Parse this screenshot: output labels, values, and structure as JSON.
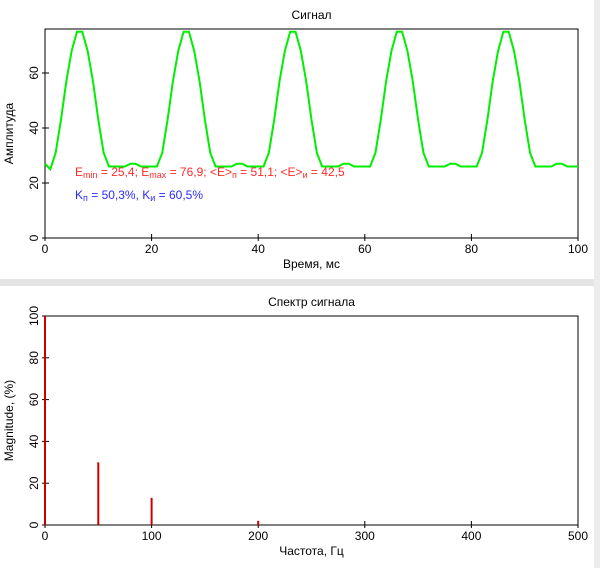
{
  "chart_data": [
    {
      "type": "line",
      "title": "Сигнал",
      "xlabel": "Время, мс",
      "ylabel": "Амплитуда",
      "x": [
        0,
        1,
        2,
        3,
        4,
        5,
        6,
        7,
        8,
        9,
        10,
        11,
        12,
        13,
        14,
        15,
        16,
        17,
        18,
        19,
        20,
        21,
        22,
        23,
        24,
        25,
        26,
        27,
        28,
        29,
        30,
        31,
        32,
        33,
        34,
        35,
        36,
        37,
        38,
        39,
        40,
        41,
        42,
        43,
        44,
        45,
        46,
        47,
        48,
        49,
        50,
        51,
        52,
        53,
        54,
        55,
        56,
        57,
        58,
        59,
        60,
        61,
        62,
        63,
        64,
        65,
        66,
        67,
        68,
        69,
        70,
        71,
        72,
        73,
        74,
        75,
        76,
        77,
        78,
        79,
        80,
        81,
        82,
        83,
        84,
        85,
        86,
        87,
        88,
        89,
        90,
        91,
        92,
        93,
        94,
        95,
        96,
        97,
        98,
        99,
        100
      ],
      "series": [
        {
          "name": "Сигнал",
          "color": "#00ee00",
          "values": [
            27,
            25,
            31,
            43,
            57,
            68,
            75,
            75,
            68,
            57,
            43,
            31,
            26,
            26,
            26,
            26,
            27,
            27,
            26,
            26,
            26,
            26,
            31,
            43,
            57,
            68,
            75,
            75,
            68,
            57,
            43,
            31,
            26,
            26,
            26,
            26,
            27,
            27,
            26,
            26,
            26,
            26,
            31,
            43,
            57,
            68,
            75,
            75,
            68,
            57,
            43,
            31,
            26,
            26,
            26,
            26,
            27,
            27,
            26,
            26,
            26,
            26,
            31,
            43,
            57,
            68,
            75,
            75,
            68,
            57,
            43,
            31,
            26,
            26,
            26,
            26,
            27,
            27,
            26,
            26,
            26,
            26,
            31,
            43,
            57,
            68,
            75,
            75,
            68,
            57,
            43,
            31,
            26,
            26,
            26,
            26,
            27,
            27,
            26,
            26,
            26
          ]
        }
      ],
      "xlim": [
        0,
        100
      ],
      "xticks": [
        0,
        20,
        40,
        60,
        80,
        100
      ],
      "ylim": [
        0,
        76
      ],
      "yticks": [
        0,
        20,
        40,
        60
      ],
      "annotations": [
        {
          "color": "#ff2a2a",
          "parts": [
            "E",
            "min",
            " = 25,4; E",
            "max",
            " = 76,9; <E>",
            "п",
            " = 51,1; <E>",
            "и",
            " = 42,5"
          ]
        },
        {
          "color": "#2a2aff",
          "parts": [
            "K",
            "п",
            " = 50,3%, K",
            "и",
            " = 60,5%"
          ]
        }
      ]
    },
    {
      "type": "stem",
      "title": "Спектр сигнала",
      "xlabel": "Частота, Гц",
      "ylabel": "Magnitude, (%)",
      "x": [
        0,
        50,
        100,
        200
      ],
      "series": [
        {
          "name": "Спектр",
          "color": "#cc0000",
          "values": [
            100,
            30,
            13,
            2
          ]
        }
      ],
      "xlim": [
        0,
        500
      ],
      "xticks": [
        0,
        100,
        200,
        300,
        400,
        500
      ],
      "ylim": [
        0,
        100
      ],
      "yticks": [
        0,
        20,
        40,
        60,
        80,
        100
      ]
    }
  ]
}
